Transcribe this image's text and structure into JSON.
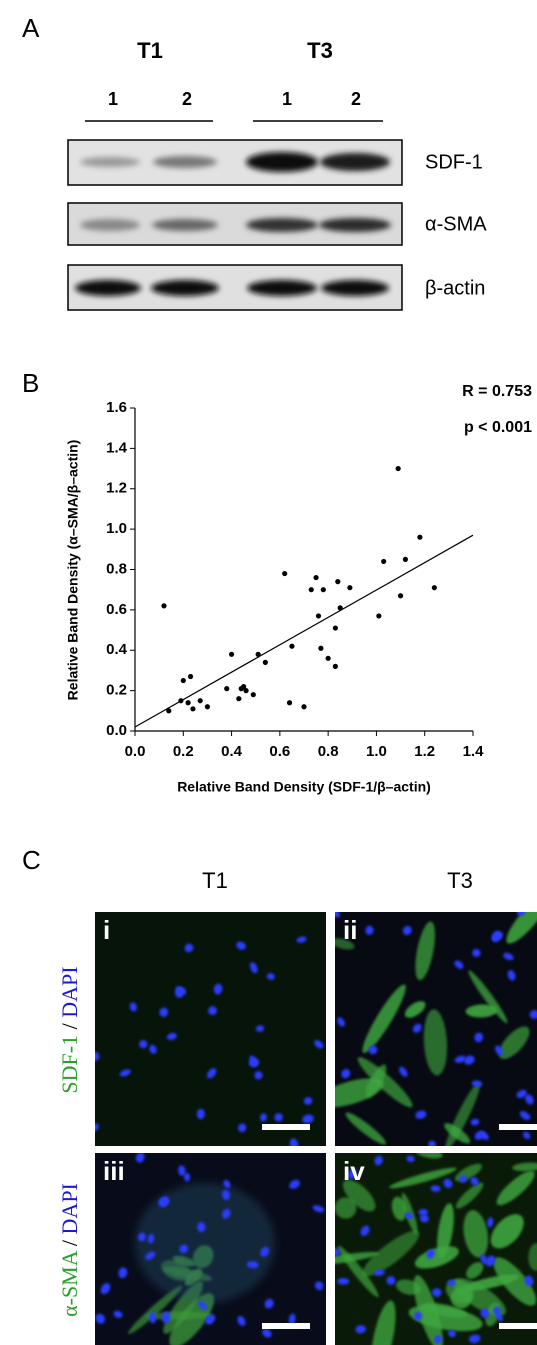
{
  "panel_a": {
    "label": "A",
    "groups": [
      {
        "name": "T1",
        "lanes": [
          "1",
          "2"
        ]
      },
      {
        "name": "T3",
        "lanes": [
          "1",
          "2"
        ]
      }
    ],
    "blots": [
      "SDF-1",
      "α-SMA",
      "β-actin"
    ]
  },
  "chart_data": {
    "type": "scatter",
    "panel_label": "B",
    "x_label": "Relative Band Density (SDF-1/β–actin)",
    "y_label": "Relative Band Density (α–SMA/β–actin)",
    "annotations": [
      "R = 0.753",
      "p < 0.001"
    ],
    "color": "#000000",
    "x": [
      0.12,
      0.14,
      0.19,
      0.2,
      0.22,
      0.23,
      0.24,
      0.27,
      0.3,
      0.38,
      0.4,
      0.43,
      0.44,
      0.45,
      0.46,
      0.49,
      0.51,
      0.54,
      0.62,
      0.64,
      0.65,
      0.7,
      0.73,
      0.75,
      0.76,
      0.77,
      0.78,
      0.8,
      0.83,
      0.83,
      0.84,
      0.85,
      0.89,
      1.01,
      1.03,
      1.09,
      1.1,
      1.12,
      1.18,
      1.24
    ],
    "y": [
      0.62,
      0.1,
      0.15,
      0.25,
      0.14,
      0.27,
      0.11,
      0.15,
      0.12,
      0.21,
      0.38,
      0.16,
      0.21,
      0.22,
      0.2,
      0.18,
      0.38,
      0.34,
      0.78,
      0.14,
      0.42,
      0.12,
      0.7,
      0.76,
      0.57,
      0.41,
      0.7,
      0.36,
      0.32,
      0.51,
      0.74,
      0.61,
      0.71,
      0.57,
      0.84,
      1.3,
      0.67,
      0.85,
      0.96,
      0.71
    ],
    "trendline": {
      "x": [
        0,
        1.4
      ],
      "y": [
        0.02,
        0.97
      ]
    },
    "xlim": [
      0,
      1.4
    ],
    "ylim": [
      0,
      1.6
    ],
    "xticks": [
      {
        "value": 0,
        "label": "0.0"
      },
      0.2,
      0.4,
      0.6,
      0.8,
      {
        "value": 1,
        "label": "1.0"
      },
      1.2,
      1.4
    ],
    "yticks": [
      {
        "value": 0,
        "label": "0.0"
      },
      0.2,
      0.4,
      0.6,
      0.8,
      {
        "value": 1,
        "label": "1.0"
      },
      1.2,
      1.4,
      1.6
    ]
  },
  "panel_c": {
    "label": "C",
    "columns": [
      "T1",
      "T3"
    ],
    "row_labels": [
      {
        "stain": "SDF-1",
        "separator": "/",
        "counterstain": "DAPI"
      },
      {
        "stain": "α-SMA",
        "separator": "/",
        "counterstain": "DAPI"
      }
    ],
    "panels": [
      "i",
      "ii",
      "iii",
      "iv"
    ]
  }
}
